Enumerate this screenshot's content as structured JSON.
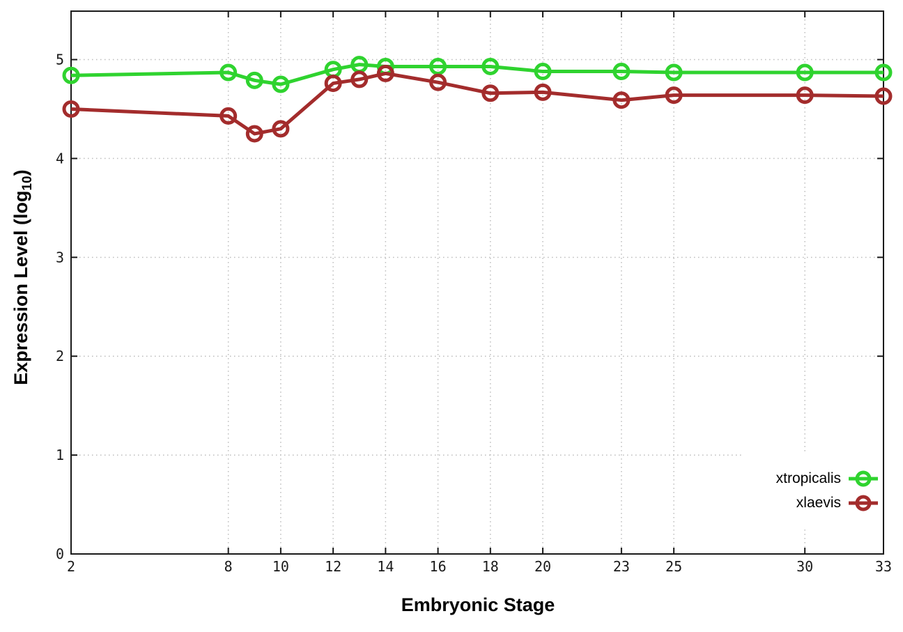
{
  "chart_data": {
    "type": "line",
    "title": "",
    "xlabel": "Embryonic Stage",
    "ylabel": {
      "pre": "Expression Level (log",
      "sub": "10",
      "post": ")"
    },
    "x": [
      2,
      8,
      9,
      10,
      12,
      13,
      14,
      16,
      18,
      20,
      23,
      25,
      30,
      33
    ],
    "xticks": [
      2,
      8,
      10,
      12,
      14,
      16,
      18,
      20,
      23,
      25,
      30,
      33
    ],
    "yticks": [
      0,
      1,
      2,
      3,
      4,
      5
    ],
    "xlim": [
      2,
      33
    ],
    "ylim": [
      0,
      5.49
    ],
    "grid": true,
    "legend_position": "inside-bottom-right",
    "marker": "open-circle",
    "series": [
      {
        "name": "xtropicalis",
        "color": "#2fd32f",
        "values": [
          4.84,
          4.87,
          4.79,
          4.75,
          4.9,
          4.95,
          4.93,
          4.93,
          4.93,
          4.88,
          4.88,
          4.87,
          4.87,
          4.87
        ]
      },
      {
        "name": "xlaevis",
        "color": "#a32c2c",
        "values": [
          4.5,
          4.43,
          4.25,
          4.3,
          4.76,
          4.8,
          4.86,
          4.77,
          4.66,
          4.67,
          4.59,
          4.64,
          4.64,
          4.63
        ]
      }
    ]
  },
  "colors": {
    "background": "#ffffff",
    "axis": "#1a1a1a",
    "grid": "#bcbcbc",
    "tick_text": "#1a1a1a"
  }
}
